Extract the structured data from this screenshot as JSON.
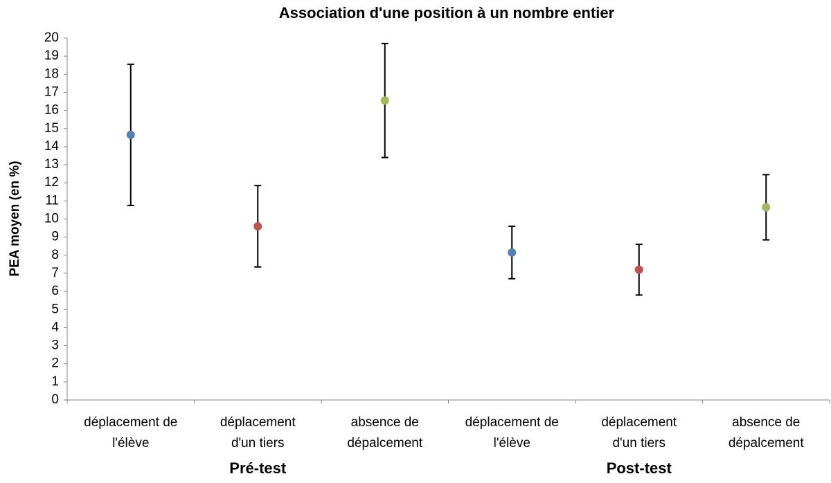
{
  "chart_data": {
    "type": "errorpoint",
    "title": "Association d'une position à un nombre entier",
    "ylabel": "PEA moyen (en %)",
    "categories": [
      [
        "déplacement de",
        "l'élève"
      ],
      [
        "déplacement",
        "d'un tiers"
      ],
      [
        "absence de",
        "dépalcement"
      ],
      [
        "déplacement de",
        "l'élève"
      ],
      [
        "déplacement",
        "d'un tiers"
      ],
      [
        "absence de",
        "dépalcement"
      ]
    ],
    "group_labels": [
      "Pré-test",
      "Post-test"
    ],
    "values": [
      14.65,
      9.6,
      16.55,
      8.15,
      7.2,
      10.65
    ],
    "errors": [
      3.9,
      2.25,
      3.15,
      1.45,
      1.4,
      1.8
    ],
    "colors": [
      "#4f81bd",
      "#c0504d",
      "#9bbb59",
      "#4f81bd",
      "#c0504d",
      "#9bbb59"
    ],
    "ylim": [
      0,
      20
    ],
    "yticks": [
      0,
      1,
      2,
      3,
      4,
      5,
      6,
      7,
      8,
      9,
      10,
      11,
      12,
      13,
      14,
      15,
      16,
      17,
      18,
      19,
      20
    ],
    "grid": false
  }
}
